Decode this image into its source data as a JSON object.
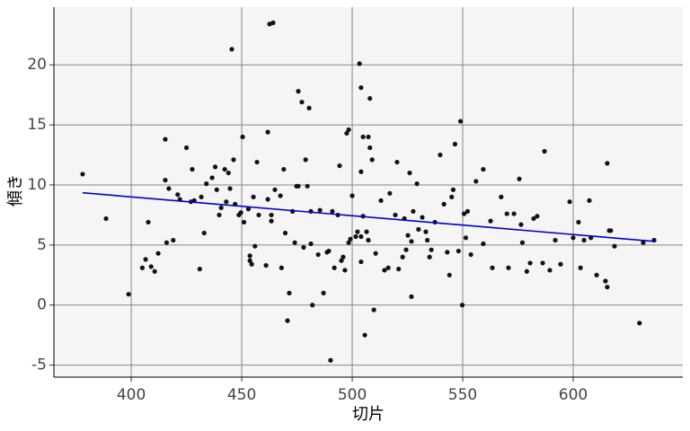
{
  "chart_data": {
    "type": "scatter",
    "x_label": "切片",
    "y_label": "傾き",
    "color": "#111111",
    "grid": true,
    "xlim": [
      365,
      649.6
    ],
    "ylim": [
      -6.0,
      24.8
    ],
    "xticks": [
      400,
      450,
      500,
      550,
      600
    ],
    "yticks": [
      -5,
      0,
      5,
      10,
      15,
      20
    ],
    "x": [
      378,
      388.6,
      398.8,
      405,
      406.5,
      407.7,
      409,
      410.6,
      412.2,
      415.4,
      415.4,
      416,
      417,
      419,
      421,
      422,
      425,
      427,
      427.6,
      428.5,
      431,
      431.7,
      433,
      434,
      436.6,
      438,
      438.7,
      439.8,
      440.7,
      442.3,
      443,
      444,
      444.7,
      445.5,
      446.3,
      447,
      448.7,
      449.6,
      450.4,
      451,
      453,
      453.7,
      453.7,
      454.5,
      455.3,
      456,
      456.9,
      457.7,
      461,
      461.8,
      461.8,
      462.6,
      464.2,
      463.4,
      463.4,
      465,
      467.5,
      468,
      469,
      469.7,
      470.7,
      471.5,
      473,
      474,
      474.8,
      475.6,
      475.6,
      477.2,
      478,
      478.9,
      479.7,
      480.5,
      481.3,
      481.3,
      482,
      484.6,
      485.4,
      487,
      488.6,
      489.4,
      490.2,
      491,
      491.9,
      493.5,
      494.3,
      495.1,
      495.9,
      496.7,
      497.5,
      498.4,
      498.4,
      499.2,
      500,
      501.6,
      502.4,
      503.3,
      504,
      504,
      504,
      504,
      504.9,
      504.9,
      505.7,
      506.5,
      507.3,
      507.3,
      508,
      508,
      509,
      509.8,
      510.6,
      513,
      514.6,
      516.3,
      517,
      519.5,
      520.3,
      521,
      522.8,
      523.6,
      524.4,
      525.2,
      526,
      526.8,
      526.8,
      527.6,
      529.3,
      530,
      531.7,
      533.3,
      534,
      535,
      535.8,
      537.4,
      539.8,
      541.5,
      543,
      544,
      545,
      545.7,
      546.5,
      548.1,
      549,
      549.8,
      550.6,
      551.4,
      552.2,
      553.7,
      556,
      559.3,
      559.3,
      562.6,
      563.4,
      567.4,
      570,
      570.7,
      573.2,
      575.6,
      576.4,
      577,
      579,
      580.5,
      582.1,
      583.7,
      586.2,
      587,
      589.4,
      591.9,
      594.3,
      598.4,
      600,
      602.4,
      603.3,
      604.9,
      607.3,
      608,
      610.6,
      614.6,
      615.4,
      615.4,
      616.3,
      617,
      618.7,
      630,
      631.7,
      636.6
    ],
    "values": [
      10.9,
      7.2,
      0.9,
      3.1,
      3.8,
      6.9,
      3.2,
      2.8,
      4.3,
      13.8,
      10.4,
      5.2,
      9.7,
      5.4,
      9.2,
      8.8,
      13.1,
      8.6,
      11.3,
      8.7,
      3.0,
      9.0,
      6.0,
      10.1,
      10.6,
      11.5,
      9.6,
      7.5,
      8.1,
      11.3,
      8.6,
      11.0,
      9.7,
      21.3,
      12.1,
      8.4,
      7.5,
      7.7,
      14.0,
      6.9,
      8.0,
      4.1,
      3.7,
      3.4,
      9.0,
      4.9,
      11.9,
      7.5,
      3.3,
      14.4,
      8.8,
      23.4,
      23.5,
      7.5,
      7.0,
      9.6,
      9.1,
      3.1,
      11.3,
      6.0,
      -1.3,
      1.0,
      7.8,
      5.2,
      9.9,
      9.9,
      17.8,
      16.9,
      4.8,
      12.1,
      9.9,
      16.4,
      7.8,
      5.1,
      0.0,
      4.2,
      7.9,
      1.0,
      4.4,
      4.5,
      -4.6,
      7.8,
      3.1,
      7.5,
      11.6,
      3.7,
      4.0,
      2.9,
      14.3,
      14.6,
      5.2,
      5.5,
      9.1,
      5.7,
      6.1,
      20.1,
      18.1,
      11.1,
      5.7,
      3.6,
      14.0,
      7.4,
      -2.5,
      6.1,
      5.4,
      14.0,
      17.2,
      13.1,
      12.1,
      -0.4,
      4.3,
      8.7,
      2.9,
      3.1,
      9.3,
      7.5,
      11.9,
      3.0,
      4.0,
      7.2,
      4.6,
      5.8,
      11.0,
      0.7,
      5.3,
      7.8,
      10.1,
      6.3,
      7.3,
      6.1,
      5.4,
      4.0,
      4.6,
      6.9,
      12.5,
      8.4,
      4.4,
      2.5,
      9.0,
      9.6,
      13.4,
      4.5,
      15.3,
      0.0,
      7.6,
      5.6,
      7.8,
      4.2,
      10.3,
      11.3,
      5.1,
      7.0,
      3.1,
      9.0,
      7.6,
      3.1,
      7.6,
      10.5,
      6.7,
      5.2,
      2.8,
      3.5,
      7.2,
      7.4,
      3.5,
      12.8,
      2.9,
      5.4,
      3.4,
      8.6,
      5.6,
      6.9,
      3.1,
      5.4,
      8.7,
      5.6,
      2.5,
      2.0,
      11.8,
      1.5,
      6.2,
      6.2,
      4.9,
      -1.5,
      5.2,
      5.4
    ],
    "fit": {
      "type": "line",
      "color": "#0000cc",
      "x": [
        378,
        636.6
      ],
      "values": [
        9.35,
        5.3
      ]
    }
  }
}
